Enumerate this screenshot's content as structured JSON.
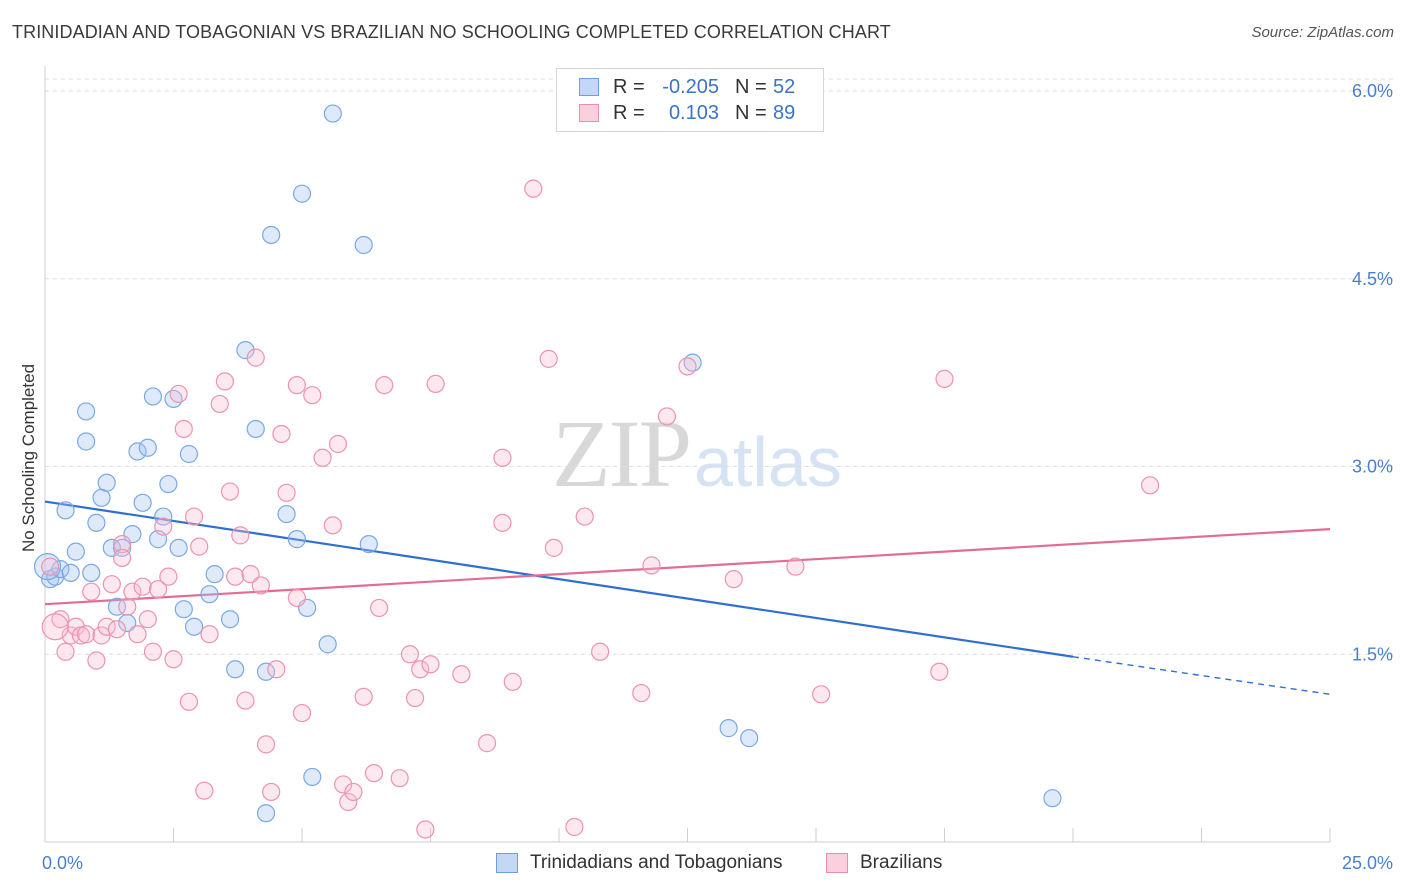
{
  "title": "TRINIDADIAN AND TOBAGONIAN VS BRAZILIAN NO SCHOOLING COMPLETED CORRELATION CHART",
  "source": "Source: ZipAtlas.com",
  "watermark": {
    "zip": "ZIP",
    "atlas": "atlas"
  },
  "legend": {
    "r_label": "R =",
    "n_label": "N =",
    "rows": [
      {
        "r": "-0.205",
        "n": "52",
        "color": "#a9c8f0",
        "border": "#6d9ee0"
      },
      {
        "r": "0.103",
        "n": "89",
        "color": "#f8c4d3",
        "border": "#ea8fab"
      }
    ]
  },
  "bottom_legend": [
    {
      "label": "Trinidadians and Tobagonians",
      "color": "#c2d8f5",
      "border": "#6d9ee0"
    },
    {
      "label": "Brazilians",
      "color": "#fbd0dd",
      "border": "#ea8fab"
    }
  ],
  "chart_data": {
    "type": "scatter",
    "title": "TRINIDADIAN AND TOBAGONIAN VS BRAZILIAN NO SCHOOLING COMPLETED CORRELATION CHART",
    "xlabel": "",
    "ylabel": "No Schooling Completed",
    "xlim": [
      0,
      25
    ],
    "ylim": [
      0,
      6.2
    ],
    "x_tick_labels": [
      "0.0%",
      "25.0%"
    ],
    "y_ticks": [
      1.5,
      3.0,
      4.5,
      6.0
    ],
    "y_tick_labels": [
      "1.5%",
      "3.0%",
      "4.5%",
      "6.0%"
    ],
    "grid": "horizontal dashed",
    "series": [
      {
        "name": "Trinidadians and Tobagonians",
        "color": "#7aa8e6",
        "fill": "rgba(160,195,240,0.35)",
        "points": [
          [
            0.1,
            2.1
          ],
          [
            0.2,
            2.12
          ],
          [
            0.3,
            2.18
          ],
          [
            0.4,
            2.65
          ],
          [
            0.5,
            2.15
          ],
          [
            0.6,
            2.32
          ],
          [
            0.8,
            3.44
          ],
          [
            0.8,
            3.2
          ],
          [
            0.9,
            2.15
          ],
          [
            1.0,
            2.55
          ],
          [
            1.1,
            2.75
          ],
          [
            1.2,
            2.87
          ],
          [
            1.3,
            2.35
          ],
          [
            1.4,
            1.88
          ],
          [
            1.5,
            2.35
          ],
          [
            1.6,
            1.75
          ],
          [
            1.7,
            2.46
          ],
          [
            1.8,
            3.12
          ],
          [
            1.9,
            2.71
          ],
          [
            2.0,
            3.15
          ],
          [
            2.1,
            3.56
          ],
          [
            2.2,
            2.42
          ],
          [
            2.3,
            2.6
          ],
          [
            2.4,
            2.86
          ],
          [
            2.5,
            3.54
          ],
          [
            2.6,
            2.35
          ],
          [
            2.7,
            1.86
          ],
          [
            2.8,
            3.1
          ],
          [
            2.9,
            1.72
          ],
          [
            3.2,
            1.98
          ],
          [
            3.3,
            2.14
          ],
          [
            3.6,
            1.78
          ],
          [
            3.7,
            1.38
          ],
          [
            3.9,
            3.93
          ],
          [
            4.1,
            3.3
          ],
          [
            4.3,
            1.36
          ],
          [
            4.3,
            0.23
          ],
          [
            4.4,
            4.85
          ],
          [
            4.7,
            2.62
          ],
          [
            4.9,
            2.42
          ],
          [
            5.0,
            5.18
          ],
          [
            5.1,
            1.87
          ],
          [
            5.2,
            0.52
          ],
          [
            5.5,
            1.58
          ],
          [
            5.6,
            5.82
          ],
          [
            6.2,
            4.77
          ],
          [
            6.3,
            2.38
          ],
          [
            12.6,
            3.83
          ],
          [
            13.3,
            0.91
          ],
          [
            13.7,
            0.83
          ],
          [
            19.6,
            0.35
          ],
          [
            0.05,
            2.2
          ]
        ],
        "trend": {
          "x": [
            0,
            20,
            25
          ],
          "y": [
            2.72,
            1.48,
            1.18
          ],
          "solid_to": 20
        }
      },
      {
        "name": "Brazilians",
        "color": "#ec93ae",
        "fill": "rgba(248,190,208,0.35)",
        "points": [
          [
            0.1,
            2.2
          ],
          [
            0.3,
            1.78
          ],
          [
            0.4,
            1.52
          ],
          [
            0.5,
            1.65
          ],
          [
            0.6,
            1.72
          ],
          [
            0.7,
            1.65
          ],
          [
            0.8,
            1.66
          ],
          [
            0.9,
            2.0
          ],
          [
            1.0,
            1.45
          ],
          [
            1.1,
            1.65
          ],
          [
            1.2,
            1.72
          ],
          [
            1.3,
            2.06
          ],
          [
            1.4,
            1.7
          ],
          [
            1.5,
            2.38
          ],
          [
            1.5,
            2.27
          ],
          [
            1.6,
            1.88
          ],
          [
            1.7,
            2.0
          ],
          [
            1.8,
            1.66
          ],
          [
            1.9,
            2.04
          ],
          [
            2.0,
            1.78
          ],
          [
            2.1,
            1.52
          ],
          [
            2.2,
            2.02
          ],
          [
            2.3,
            2.52
          ],
          [
            2.4,
            2.12
          ],
          [
            2.5,
            1.46
          ],
          [
            2.6,
            3.58
          ],
          [
            2.7,
            3.3
          ],
          [
            2.8,
            1.12
          ],
          [
            2.9,
            2.6
          ],
          [
            3.0,
            2.36
          ],
          [
            3.1,
            0.41
          ],
          [
            3.2,
            1.66
          ],
          [
            3.4,
            3.5
          ],
          [
            3.5,
            3.68
          ],
          [
            3.6,
            2.8
          ],
          [
            3.7,
            2.12
          ],
          [
            3.8,
            2.45
          ],
          [
            3.9,
            1.13
          ],
          [
            4.0,
            2.14
          ],
          [
            4.1,
            3.87
          ],
          [
            4.2,
            2.05
          ],
          [
            4.3,
            0.78
          ],
          [
            4.4,
            0.4
          ],
          [
            4.5,
            1.38
          ],
          [
            4.6,
            3.26
          ],
          [
            4.7,
            2.79
          ],
          [
            4.9,
            3.65
          ],
          [
            4.9,
            1.95
          ],
          [
            5.0,
            1.03
          ],
          [
            5.2,
            3.57
          ],
          [
            5.4,
            3.07
          ],
          [
            5.6,
            2.53
          ],
          [
            5.7,
            3.18
          ],
          [
            5.8,
            0.46
          ],
          [
            5.9,
            0.32
          ],
          [
            6.0,
            0.4
          ],
          [
            6.2,
            1.16
          ],
          [
            6.4,
            0.55
          ],
          [
            6.5,
            1.87
          ],
          [
            6.6,
            3.65
          ],
          [
            6.9,
            0.51
          ],
          [
            7.1,
            1.5
          ],
          [
            7.2,
            1.15
          ],
          [
            7.3,
            1.38
          ],
          [
            7.4,
            0.1
          ],
          [
            7.5,
            1.42
          ],
          [
            7.6,
            3.66
          ],
          [
            8.1,
            1.34
          ],
          [
            8.6,
            0.79
          ],
          [
            8.9,
            2.55
          ],
          [
            8.9,
            3.07
          ],
          [
            9.1,
            1.28
          ],
          [
            9.5,
            5.22
          ],
          [
            9.8,
            3.86
          ],
          [
            9.9,
            2.35
          ],
          [
            10.3,
            0.12
          ],
          [
            10.5,
            2.6
          ],
          [
            10.8,
            1.52
          ],
          [
            11.6,
            1.19
          ],
          [
            11.8,
            2.21
          ],
          [
            12.1,
            3.4
          ],
          [
            12.5,
            3.8
          ],
          [
            13.4,
            2.1
          ],
          [
            14.6,
            2.2
          ],
          [
            15.1,
            1.18
          ],
          [
            17.4,
            1.36
          ],
          [
            17.5,
            3.7
          ],
          [
            21.5,
            2.85
          ],
          [
            0.2,
            1.72
          ]
        ],
        "trend": {
          "x": [
            0,
            25
          ],
          "y": [
            1.9,
            2.5
          ]
        }
      }
    ]
  }
}
